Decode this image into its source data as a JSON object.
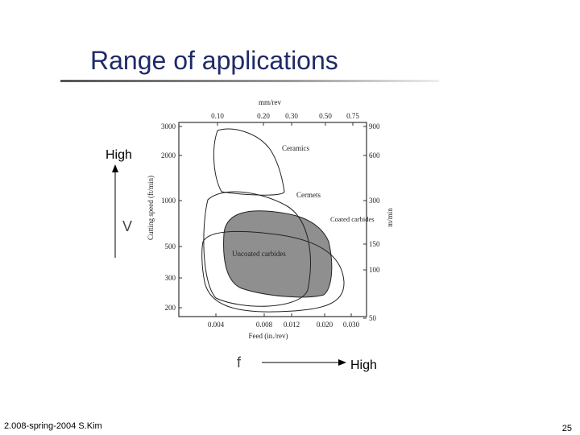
{
  "header": {
    "title": "Range of applications"
  },
  "diagram": {
    "top_axis": {
      "label": "mm/rev",
      "ticks": [
        "0.10",
        "0.20",
        "0.30",
        "0.50",
        "0.75"
      ]
    },
    "bottom_axis": {
      "label": "Feed (in./rev)",
      "ticks": [
        "0.004",
        "0.008",
        "0.012",
        "0.020",
        "0.030"
      ]
    },
    "left_axis": {
      "label": "Cutting speed (ft/min)",
      "ticks": [
        "3000",
        "2000",
        "1000",
        "500",
        "300",
        "200"
      ]
    },
    "right_axis": {
      "label": "m/min",
      "ticks": [
        "900",
        "600",
        "300",
        "150",
        "100",
        "50"
      ]
    },
    "regions": [
      "Ceramics",
      "Cermets",
      "Coated carbides",
      "Uncoated carbides"
    ]
  },
  "annotations": {
    "v_high": "High",
    "v_label": "V",
    "f_label": "f",
    "f_high": "High"
  },
  "footer": {
    "source": "2.008-spring-2004 S.Kim",
    "page": "25"
  }
}
